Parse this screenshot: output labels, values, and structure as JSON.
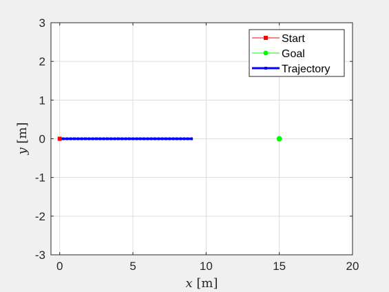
{
  "chart_data": {
    "type": "line",
    "xlabel_var": "x",
    "xlabel_unit": "[m]",
    "ylabel_var": "y",
    "ylabel_unit": "[m]",
    "xlim": [
      -0.6,
      20
    ],
    "ylim": [
      -3,
      3
    ],
    "xticks": [
      0,
      5,
      10,
      15,
      20
    ],
    "yticks": [
      -3,
      -2,
      -1,
      0,
      1,
      2,
      3
    ],
    "grid": true,
    "legend_position": "top-right",
    "series": [
      {
        "name": "Start",
        "color": "#ff0000",
        "marker": "square",
        "x": [
          0
        ],
        "y": [
          0
        ]
      },
      {
        "name": "Goal",
        "color": "#00ff00",
        "marker": "circle",
        "x": [
          15
        ],
        "y": [
          0
        ]
      },
      {
        "name": "Trajectory",
        "color": "#0000ff",
        "marker": "square",
        "x": [
          0,
          0.25,
          0.5,
          0.75,
          1,
          1.25,
          1.5,
          1.75,
          2,
          2.25,
          2.5,
          2.75,
          3,
          3.25,
          3.5,
          3.75,
          4,
          4.25,
          4.5,
          4.75,
          5,
          5.25,
          5.5,
          5.75,
          6,
          6.25,
          6.5,
          6.75,
          7,
          7.25,
          7.5,
          7.75,
          8,
          8.25,
          8.5,
          8.75,
          9
        ],
        "y": [
          0,
          0,
          0,
          0,
          0,
          0,
          0,
          0,
          0,
          0,
          0,
          0,
          0,
          0,
          0,
          0,
          0,
          0,
          0,
          0,
          0,
          0,
          0,
          0,
          0,
          0,
          0,
          0,
          0,
          0,
          0,
          0,
          0,
          0,
          0,
          0,
          0
        ]
      }
    ]
  }
}
